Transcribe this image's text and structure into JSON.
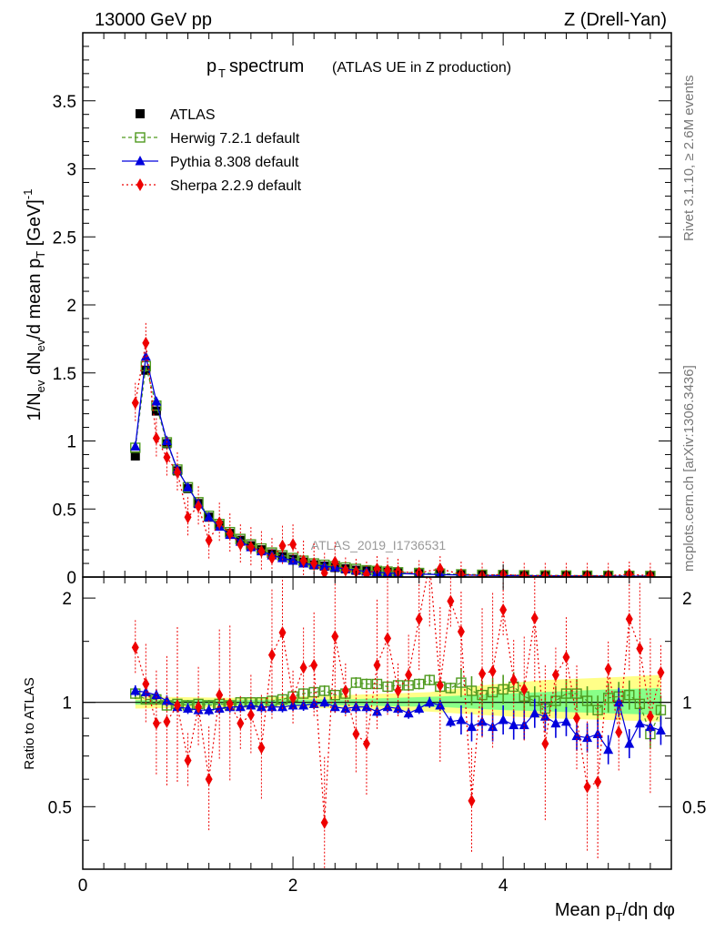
{
  "header": {
    "energy": "13000 GeV pp",
    "process": "Z (Drell-Yan)",
    "title_main": "p",
    "title_sub": "T",
    "title_rest": " spectrum",
    "title_note": "(ATLAS UE in Z production)",
    "analysis_id": "ATLAS_2019_I1736531",
    "rivet_note": "Rivet 3.1.10, ≥ 2.6M events",
    "mcplots_note": "mcplots.cern.ch [arXiv:1306.3436]"
  },
  "axes": {
    "ylabel_main": "1/N",
    "ylabel_ev1": "ev",
    "ylabel_mid": " dN",
    "ylabel_ev2": "ev",
    "ylabel_rest": "/d mean p",
    "ylabel_T": "T",
    "ylabel_unit": " [GeV]",
    "ylabel_exp": "-1",
    "ratio_label": "Ratio to ATLAS",
    "xlabel_main": "Mean p",
    "xlabel_T": "T",
    "xlabel_rest": "/dη dφ"
  },
  "legend": [
    {
      "label": "ATLAS",
      "color": "#000000",
      "marker": "square-filled"
    },
    {
      "label": "Herwig 7.2.1 default",
      "color": "#4f9a1f",
      "marker": "square-open"
    },
    {
      "label": "Pythia 8.308 default",
      "color": "#0000dd",
      "marker": "triangle"
    },
    {
      "label": "Sherpa 2.2.9 default",
      "color": "#ee0000",
      "marker": "diamond"
    }
  ],
  "chart_data": {
    "type": "scatter",
    "main": {
      "xlim": [
        0,
        5.6
      ],
      "ylim": [
        0,
        4.0
      ],
      "yticks": [
        {
          "v": 0,
          "t": "0"
        },
        {
          "v": 0.5,
          "t": "0.5"
        },
        {
          "v": 1,
          "t": "1"
        },
        {
          "v": 1.5,
          "t": "1.5"
        },
        {
          "v": 2,
          "t": "2"
        },
        {
          "v": 2.5,
          "t": "2.5"
        },
        {
          "v": 3,
          "t": "3"
        },
        {
          "v": 3.5,
          "t": "3.5"
        }
      ],
      "xticks": [
        {
          "v": 0,
          "t": "0"
        },
        {
          "v": 2,
          "t": "2"
        },
        {
          "v": 4,
          "t": "4"
        }
      ],
      "x": [
        0.5,
        0.6,
        0.7,
        0.8,
        0.9,
        1.0,
        1.1,
        1.2,
        1.3,
        1.4,
        1.5,
        1.6,
        1.7,
        1.8,
        1.9,
        2.0,
        2.1,
        2.2,
        2.3,
        2.4,
        2.5,
        2.6,
        2.7,
        2.8,
        2.9,
        3.0,
        3.2,
        3.4,
        3.6,
        3.8,
        4.0,
        4.2,
        4.4,
        4.6,
        4.8,
        5.0,
        5.2,
        5.4
      ],
      "series": [
        {
          "name": "ATLAS",
          "values": [
            0.89,
            1.52,
            1.22,
            0.98,
            0.78,
            0.65,
            0.54,
            0.44,
            0.38,
            0.32,
            0.27,
            0.23,
            0.2,
            0.17,
            0.15,
            0.13,
            0.11,
            0.09,
            0.08,
            0.07,
            0.06,
            0.05,
            0.045,
            0.04,
            0.035,
            0.03,
            0.025,
            0.02,
            0.018,
            0.015,
            0.013,
            0.012,
            0.011,
            0.01,
            0.009,
            0.008,
            0.008,
            0.007
          ]
        },
        {
          "name": "Herwig 7.2.1 default",
          "values": [
            0.95,
            1.55,
            1.26,
            0.99,
            0.79,
            0.66,
            0.55,
            0.45,
            0.39,
            0.33,
            0.28,
            0.24,
            0.21,
            0.18,
            0.16,
            0.14,
            0.12,
            0.1,
            0.09,
            0.08,
            0.07,
            0.06,
            0.05,
            0.045,
            0.04,
            0.035,
            0.03,
            0.025,
            0.02,
            0.017,
            0.015,
            0.013,
            0.012,
            0.011,
            0.01,
            0.009,
            0.009,
            0.008
          ]
        },
        {
          "name": "Pythia 8.308 default",
          "values": [
            0.96,
            1.62,
            1.29,
            1.0,
            0.79,
            0.66,
            0.54,
            0.44,
            0.37,
            0.31,
            0.26,
            0.22,
            0.19,
            0.16,
            0.14,
            0.12,
            0.1,
            0.09,
            0.08,
            0.07,
            0.06,
            0.05,
            0.04,
            0.035,
            0.03,
            0.026,
            0.022,
            0.018,
            0.015,
            0.012,
            0.011,
            0.01,
            0.009,
            0.008,
            0.007,
            0.006,
            0.006,
            0.006
          ]
        },
        {
          "name": "Sherpa 2.2.9 default",
          "values": [
            1.28,
            1.72,
            1.02,
            0.88,
            0.77,
            0.44,
            0.52,
            0.27,
            0.4,
            0.32,
            0.24,
            0.22,
            0.19,
            0.14,
            0.23,
            0.24,
            0.12,
            0.1,
            0.03,
            0.11,
            0.05,
            0.04,
            0.02,
            0.06,
            0.05,
            0.04,
            0.03,
            0.06,
            0.02,
            0.01,
            0.02,
            0.01,
            0.01,
            0.01,
            0.01,
            0.01,
            0.02,
            0.01
          ]
        }
      ]
    },
    "ratio": {
      "ylim": [
        0.33,
        2.3
      ],
      "yticks": [
        {
          "v": 0.5,
          "t": "0.5"
        },
        {
          "v": 1,
          "t": "1"
        },
        {
          "v": 2,
          "t": "2"
        }
      ],
      "band_outer": [
        [
          0.5,
          0.96,
          1.04
        ],
        [
          1.5,
          0.97,
          1.03
        ],
        [
          2.5,
          0.96,
          1.05
        ],
        [
          3.3,
          0.94,
          1.07
        ],
        [
          3.8,
          0.92,
          1.12
        ],
        [
          4.4,
          0.9,
          1.16
        ],
        [
          5.0,
          0.89,
          1.18
        ],
        [
          5.5,
          0.88,
          1.2
        ]
      ],
      "band_inner": [
        [
          0.5,
          0.985,
          1.015
        ],
        [
          2.5,
          0.98,
          1.02
        ],
        [
          3.4,
          0.97,
          1.04
        ],
        [
          4.0,
          0.95,
          1.06
        ],
        [
          5.0,
          0.93,
          1.09
        ],
        [
          5.5,
          0.92,
          1.1
        ]
      ],
      "series": [
        {
          "name": "Herwig 7.2.1 default",
          "x": [
            0.5,
            0.6,
            0.7,
            0.8,
            0.9,
            1.0,
            1.1,
            1.2,
            1.3,
            1.4,
            1.5,
            1.6,
            1.7,
            1.8,
            1.9,
            2.0,
            2.1,
            2.2,
            2.3,
            2.4,
            2.5,
            2.6,
            2.7,
            2.8,
            2.9,
            3.0,
            3.1,
            3.2,
            3.3,
            3.4,
            3.5,
            3.6,
            3.7,
            3.8,
            3.9,
            4.0,
            4.1,
            4.2,
            4.3,
            4.4,
            4.5,
            4.6,
            4.7,
            4.8,
            4.9,
            5.0,
            5.1,
            5.2,
            5.3,
            5.4,
            5.5
          ],
          "values": [
            1.06,
            1.02,
            1.02,
            0.98,
            0.99,
            0.98,
            0.99,
            0.98,
            0.99,
            0.98,
            1.0,
            1.0,
            1.0,
            1.01,
            1.02,
            1.04,
            1.06,
            1.07,
            1.08,
            1.05,
            1.06,
            1.14,
            1.13,
            1.13,
            1.11,
            1.12,
            1.12,
            1.13,
            1.16,
            1.11,
            1.1,
            1.14,
            1.08,
            1.05,
            1.07,
            1.09,
            1.11,
            1.04,
            1.01,
            0.96,
            1.01,
            1.06,
            1.06,
            1.01,
            0.95,
            1.03,
            1.04,
            1.05,
            0.99,
            0.81,
            0.95
          ]
        },
        {
          "name": "Pythia 8.308 default",
          "x": [
            0.5,
            0.6,
            0.7,
            0.8,
            0.9,
            1.0,
            1.1,
            1.2,
            1.3,
            1.4,
            1.5,
            1.6,
            1.7,
            1.8,
            1.9,
            2.0,
            2.1,
            2.2,
            2.3,
            2.4,
            2.5,
            2.6,
            2.7,
            2.8,
            2.9,
            3.0,
            3.1,
            3.2,
            3.3,
            3.4,
            3.5,
            3.6,
            3.7,
            3.8,
            3.9,
            4.0,
            4.1,
            4.2,
            4.3,
            4.4,
            4.5,
            4.6,
            4.7,
            4.8,
            4.9,
            5.0,
            5.1,
            5.2,
            5.3,
            5.4,
            5.5
          ],
          "values": [
            1.08,
            1.07,
            1.05,
            1.01,
            0.97,
            0.96,
            0.95,
            0.95,
            0.96,
            0.97,
            0.97,
            0.98,
            0.97,
            0.97,
            0.97,
            0.98,
            0.98,
            0.99,
            1.0,
            0.97,
            0.96,
            0.97,
            0.97,
            0.94,
            0.97,
            0.96,
            0.93,
            0.96,
            1.0,
            0.98,
            0.88,
            0.89,
            0.85,
            0.88,
            0.85,
            0.89,
            0.86,
            0.86,
            0.93,
            0.91,
            0.87,
            0.88,
            0.8,
            0.79,
            0.81,
            0.73,
            1.0,
            0.76,
            0.87,
            0.85,
            0.83
          ]
        },
        {
          "name": "Sherpa 2.2.9 default",
          "x": [
            0.5,
            0.6,
            0.7,
            0.8,
            0.9,
            1.0,
            1.1,
            1.2,
            1.3,
            1.4,
            1.5,
            1.6,
            1.7,
            1.8,
            1.9,
            2.0,
            2.1,
            2.2,
            2.3,
            2.4,
            2.5,
            2.6,
            2.7,
            2.8,
            2.9,
            3.0,
            3.1,
            3.2,
            3.3,
            3.4,
            3.5,
            3.6,
            3.7,
            3.8,
            3.9,
            4.0,
            4.1,
            4.2,
            4.3,
            4.4,
            4.5,
            4.6,
            4.7,
            4.8,
            4.9,
            5.0,
            5.1,
            5.2,
            5.3,
            5.4,
            5.5
          ],
          "values": [
            1.44,
            1.13,
            0.87,
            0.88,
            0.98,
            0.68,
            0.97,
            0.6,
            1.05,
            0.99,
            0.87,
            0.92,
            0.74,
            1.37,
            1.59,
            1.03,
            1.26,
            1.28,
            0.45,
            1.55,
            1.08,
            0.81,
            0.76,
            1.28,
            1.53,
            1.08,
            1.2,
            1.74,
            2.65,
            1.12,
            1.96,
            1.6,
            0.52,
            1.21,
            1.23,
            1.85,
            1.16,
            1.09,
            1.75,
            0.76,
            1.2,
            1.35,
            0.9,
            0.57,
            0.59,
            1.25,
            0.82,
            1.74,
            1.43,
            0.91,
            1.22
          ]
        }
      ]
    }
  }
}
